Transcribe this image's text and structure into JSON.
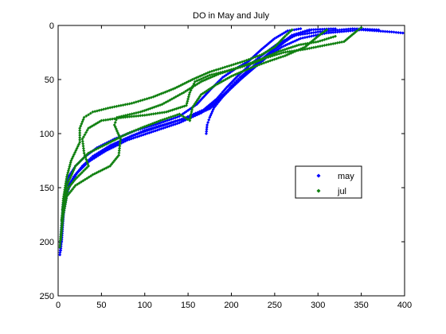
{
  "chart_data": {
    "type": "scatter",
    "title": "DO in May and July",
    "xlabel": "",
    "ylabel": "",
    "xlim": [
      0,
      400
    ],
    "ylim": [
      0,
      250
    ],
    "y_reversed": true,
    "grid": false,
    "legend_position": "right",
    "x_ticks": [
      "0",
      "50",
      "100",
      "150",
      "200",
      "250",
      "300",
      "350",
      "400"
    ],
    "y_ticks": [
      "0",
      "50",
      "100",
      "150",
      "200",
      "250"
    ],
    "series": [
      {
        "name": "may",
        "color": "#0000ff",
        "marker": "diamond",
        "profiles": [
          [
            [
              2,
              212
            ],
            [
              4,
              190
            ],
            [
              6,
              170
            ],
            [
              8,
              152
            ],
            [
              12,
              140
            ],
            [
              20,
              130
            ],
            [
              30,
              122
            ],
            [
              45,
              113
            ],
            [
              65,
              105
            ],
            [
              90,
              97
            ],
            [
              115,
              91
            ],
            [
              140,
              84
            ],
            [
              160,
              73
            ],
            [
              175,
              60
            ],
            [
              190,
              48
            ],
            [
              205,
              40
            ],
            [
              220,
              33
            ],
            [
              235,
              22
            ],
            [
              250,
              12
            ],
            [
              265,
              5
            ],
            [
              280,
              3
            ]
          ],
          [
            [
              3,
              208
            ],
            [
              5,
              185
            ],
            [
              8,
              160
            ],
            [
              12,
              148
            ],
            [
              20,
              138
            ],
            [
              32,
              128
            ],
            [
              50,
              117
            ],
            [
              75,
              106
            ],
            [
              100,
              97
            ],
            [
              130,
              90
            ],
            [
              155,
              84
            ],
            [
              175,
              77
            ],
            [
              190,
              66
            ],
            [
              200,
              56
            ],
            [
              210,
              48
            ],
            [
              225,
              38
            ],
            [
              240,
              28
            ],
            [
              255,
              18
            ],
            [
              270,
              9
            ],
            [
              290,
              4
            ],
            [
              320,
              3
            ]
          ],
          [
            [
              4,
              200
            ],
            [
              6,
              175
            ],
            [
              10,
              155
            ],
            [
              18,
              140
            ],
            [
              28,
              130
            ],
            [
              40,
              121
            ],
            [
              60,
              111
            ],
            [
              85,
              102
            ],
            [
              115,
              94
            ],
            [
              145,
              86
            ],
            [
              168,
              78
            ],
            [
              183,
              68
            ],
            [
              195,
              57
            ],
            [
              207,
              47
            ],
            [
              222,
              36
            ],
            [
              238,
              26
            ],
            [
              255,
              16
            ],
            [
              275,
              9
            ],
            [
              300,
              6
            ],
            [
              340,
              3
            ],
            [
              370,
              4
            ]
          ],
          [
            [
              3,
              195
            ],
            [
              6,
              165
            ],
            [
              12,
              150
            ],
            [
              22,
              136
            ],
            [
              35,
              126
            ],
            [
              55,
              116
            ],
            [
              80,
              106
            ],
            [
              110,
              98
            ],
            [
              140,
              90
            ],
            [
              165,
              81
            ],
            [
              182,
              71
            ],
            [
              196,
              60
            ],
            [
              210,
              50
            ],
            [
              225,
              40
            ],
            [
              240,
              30
            ],
            [
              258,
              20
            ],
            [
              280,
              12
            ],
            [
              310,
              7
            ],
            [
              350,
              4
            ],
            [
              385,
              6
            ],
            [
              398,
              7
            ]
          ],
          [
            [
              171,
              100
            ],
            [
              172,
              92
            ],
            [
              175,
              85
            ],
            [
              180,
              76
            ],
            [
              190,
              66
            ],
            [
              200,
              58
            ],
            [
              212,
              49
            ],
            [
              225,
              40
            ],
            [
              238,
              31
            ],
            [
              250,
              22
            ],
            [
              262,
              15
            ],
            [
              275,
              8
            ],
            [
              290,
              5
            ]
          ]
        ]
      },
      {
        "name": "jul",
        "color": "#108010",
        "marker": "diamond",
        "profiles": [
          [
            [
              2,
              205
            ],
            [
              4,
              185
            ],
            [
              6,
              160
            ],
            [
              10,
              140
            ],
            [
              15,
              125
            ],
            [
              25,
              108
            ],
            [
              25,
              95
            ],
            [
              30,
              85
            ],
            [
              40,
              80
            ],
            [
              60,
              76
            ],
            [
              85,
              72
            ],
            [
              110,
              66
            ],
            [
              135,
              58
            ],
            [
              155,
              50
            ],
            [
              175,
              43
            ],
            [
              195,
              38
            ],
            [
              215,
              33
            ],
            [
              235,
              27
            ],
            [
              250,
              20
            ],
            [
              262,
              10
            ],
            [
              270,
              4
            ]
          ],
          [
            [
              3,
              198
            ],
            [
              6,
              175
            ],
            [
              10,
              158
            ],
            [
              20,
              148
            ],
            [
              40,
              138
            ],
            [
              60,
              130
            ],
            [
              70,
              120
            ],
            [
              72,
              105
            ],
            [
              65,
              92
            ],
            [
              68,
              85
            ],
            [
              95,
              80
            ],
            [
              120,
              73
            ],
            [
              145,
              62
            ],
            [
              165,
              52
            ],
            [
              185,
              45
            ],
            [
              205,
              40
            ],
            [
              225,
              35
            ],
            [
              240,
              30
            ],
            [
              260,
              25
            ],
            [
              285,
              22
            ],
            [
              310,
              18
            ],
            [
              330,
              15
            ],
            [
              345,
              5
            ],
            [
              350,
              2
            ]
          ],
          [
            [
              4,
              180
            ],
            [
              8,
              160
            ],
            [
              12,
              150
            ],
            [
              20,
              142
            ],
            [
              35,
              130
            ],
            [
              30,
              118
            ],
            [
              28,
              105
            ],
            [
              35,
              95
            ],
            [
              50,
              88
            ],
            [
              75,
              85
            ],
            [
              100,
              83
            ],
            [
              125,
              80
            ],
            [
              148,
              74
            ],
            [
              152,
              62
            ],
            [
              158,
              52
            ],
            [
              175,
              46
            ],
            [
              195,
              42
            ],
            [
              215,
              37
            ],
            [
              238,
              30
            ],
            [
              255,
              24
            ],
            [
              278,
              18
            ],
            [
              300,
              15
            ],
            [
              320,
              10
            ]
          ],
          [
            [
              5,
              170
            ],
            [
              10,
              148
            ],
            [
              20,
              130
            ],
            [
              35,
              118
            ],
            [
              60,
              108
            ],
            [
              80,
              100
            ],
            [
              95,
              95
            ],
            [
              118,
              88
            ],
            [
              140,
              82
            ],
            [
              152,
              88
            ],
            [
              155,
              76
            ],
            [
              165,
              64
            ],
            [
              182,
              55
            ],
            [
              200,
              47
            ],
            [
              220,
              40
            ],
            [
              240,
              34
            ],
            [
              262,
              28
            ],
            [
              285,
              20
            ],
            [
              300,
              10
            ],
            [
              310,
              4
            ]
          ]
        ]
      }
    ]
  }
}
